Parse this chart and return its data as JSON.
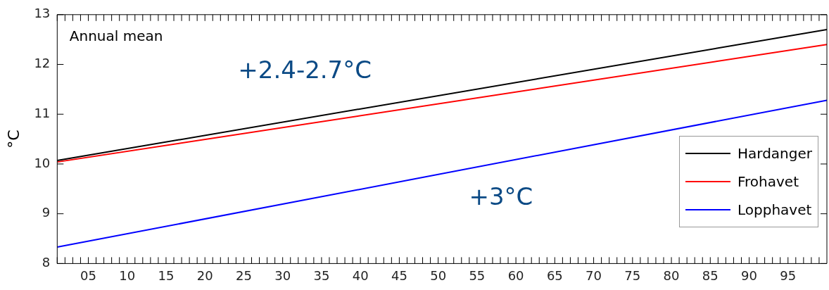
{
  "chart_data": {
    "type": "line",
    "ylabel": "°C",
    "x": [
      2001,
      2100
    ],
    "series": [
      {
        "name": "Hardanger",
        "color": "#000000",
        "values": [
          10.07,
          12.7
        ]
      },
      {
        "name": "Frohavet",
        "color": "#ff0000",
        "values": [
          10.04,
          12.4
        ]
      },
      {
        "name": "Lopphavet",
        "color": "#0000ff",
        "values": [
          8.33,
          11.28
        ]
      }
    ],
    "xlim": [
      2001,
      2100
    ],
    "ylim": [
      8,
      13
    ],
    "yticks": [
      8,
      9,
      10,
      11,
      12,
      13
    ],
    "xticks": [
      {
        "value": 2001,
        "label": null
      },
      {
        "value": 2002,
        "label": null
      },
      {
        "value": 2003,
        "label": null
      },
      {
        "value": 2004,
        "label": null
      },
      {
        "value": 2005,
        "label": "05"
      },
      {
        "value": 2006,
        "label": null
      },
      {
        "value": 2007,
        "label": null
      },
      {
        "value": 2008,
        "label": null
      },
      {
        "value": 2009,
        "label": null
      },
      {
        "value": 2010,
        "label": "10"
      },
      {
        "value": 2011,
        "label": null
      },
      {
        "value": 2012,
        "label": null
      },
      {
        "value": 2013,
        "label": null
      },
      {
        "value": 2014,
        "label": null
      },
      {
        "value": 2015,
        "label": "15"
      },
      {
        "value": 2016,
        "label": null
      },
      {
        "value": 2017,
        "label": null
      },
      {
        "value": 2018,
        "label": null
      },
      {
        "value": 2019,
        "label": null
      },
      {
        "value": 2020,
        "label": "20"
      },
      {
        "value": 2021,
        "label": null
      },
      {
        "value": 2022,
        "label": null
      },
      {
        "value": 2023,
        "label": null
      },
      {
        "value": 2024,
        "label": null
      },
      {
        "value": 2025,
        "label": "25"
      },
      {
        "value": 2026,
        "label": null
      },
      {
        "value": 2027,
        "label": null
      },
      {
        "value": 2028,
        "label": null
      },
      {
        "value": 2029,
        "label": null
      },
      {
        "value": 2030,
        "label": "30"
      },
      {
        "value": 2031,
        "label": null
      },
      {
        "value": 2032,
        "label": null
      },
      {
        "value": 2033,
        "label": null
      },
      {
        "value": 2034,
        "label": null
      },
      {
        "value": 2035,
        "label": "35"
      },
      {
        "value": 2036,
        "label": null
      },
      {
        "value": 2037,
        "label": null
      },
      {
        "value": 2038,
        "label": null
      },
      {
        "value": 2039,
        "label": null
      },
      {
        "value": 2040,
        "label": "40"
      },
      {
        "value": 2041,
        "label": null
      },
      {
        "value": 2042,
        "label": null
      },
      {
        "value": 2043,
        "label": null
      },
      {
        "value": 2044,
        "label": null
      },
      {
        "value": 2045,
        "label": "45"
      },
      {
        "value": 2046,
        "label": null
      },
      {
        "value": 2047,
        "label": null
      },
      {
        "value": 2048,
        "label": null
      },
      {
        "value": 2049,
        "label": null
      },
      {
        "value": 2050,
        "label": "50"
      },
      {
        "value": 2051,
        "label": null
      },
      {
        "value": 2052,
        "label": null
      },
      {
        "value": 2053,
        "label": null
      },
      {
        "value": 2054,
        "label": null
      },
      {
        "value": 2055,
        "label": "55"
      },
      {
        "value": 2056,
        "label": null
      },
      {
        "value": 2057,
        "label": null
      },
      {
        "value": 2058,
        "label": null
      },
      {
        "value": 2059,
        "label": null
      },
      {
        "value": 2060,
        "label": "60"
      },
      {
        "value": 2061,
        "label": null
      },
      {
        "value": 2062,
        "label": null
      },
      {
        "value": 2063,
        "label": null
      },
      {
        "value": 2064,
        "label": null
      },
      {
        "value": 2065,
        "label": "65"
      },
      {
        "value": 2066,
        "label": null
      },
      {
        "value": 2067,
        "label": null
      },
      {
        "value": 2068,
        "label": null
      },
      {
        "value": 2069,
        "label": null
      },
      {
        "value": 2070,
        "label": "70"
      },
      {
        "value": 2071,
        "label": null
      },
      {
        "value": 2072,
        "label": null
      },
      {
        "value": 2073,
        "label": null
      },
      {
        "value": 2074,
        "label": null
      },
      {
        "value": 2075,
        "label": "75"
      },
      {
        "value": 2076,
        "label": null
      },
      {
        "value": 2077,
        "label": null
      },
      {
        "value": 2078,
        "label": null
      },
      {
        "value": 2079,
        "label": null
      },
      {
        "value": 2080,
        "label": "80"
      },
      {
        "value": 2081,
        "label": null
      },
      {
        "value": 2082,
        "label": null
      },
      {
        "value": 2083,
        "label": null
      },
      {
        "value": 2084,
        "label": null
      },
      {
        "value": 2085,
        "label": "85"
      },
      {
        "value": 2086,
        "label": null
      },
      {
        "value": 2087,
        "label": null
      },
      {
        "value": 2088,
        "label": null
      },
      {
        "value": 2089,
        "label": null
      },
      {
        "value": 2090,
        "label": "90"
      },
      {
        "value": 2091,
        "label": null
      },
      {
        "value": 2092,
        "label": null
      },
      {
        "value": 2093,
        "label": null
      },
      {
        "value": 2094,
        "label": null
      },
      {
        "value": 2095,
        "label": "95"
      },
      {
        "value": 2096,
        "label": null
      },
      {
        "value": 2097,
        "label": null
      },
      {
        "value": 2098,
        "label": null
      },
      {
        "value": 2099,
        "label": null
      }
    ],
    "legend": "right",
    "marker": "none",
    "line_style": "solid",
    "grid": false,
    "annotations": [
      "Annual mean",
      "+2.4-2.7°C",
      "+3°C"
    ]
  }
}
